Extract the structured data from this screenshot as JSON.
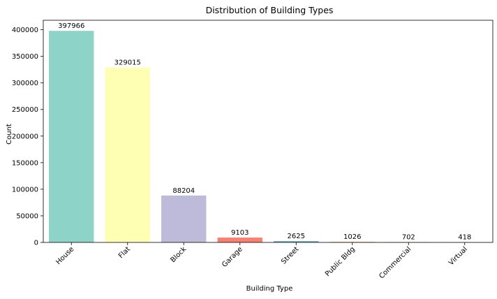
{
  "chart_data": {
    "type": "bar",
    "title": "Distribution of Building Types",
    "xlabel": "Building Type",
    "ylabel": "Count",
    "categories": [
      "House",
      "Flat",
      "Block",
      "Garage",
      "Street",
      "Public Bldg",
      "Commercial",
      "Virtual"
    ],
    "values": [
      397966,
      329015,
      88204,
      9103,
      2625,
      1026,
      702,
      418
    ],
    "data_labels": [
      "397966",
      "329015",
      "88204",
      "9103",
      "2625",
      "1026",
      "702",
      "418"
    ],
    "colors": [
      "#8dd3c7",
      "#ffffb3",
      "#bebada",
      "#fb8072",
      "#80b1d3",
      "#fdb462",
      "#b3de69",
      "#fccde5"
    ],
    "ylim": [
      0,
      417864
    ],
    "yticks": [
      0,
      50000,
      100000,
      150000,
      200000,
      250000,
      300000,
      350000,
      400000
    ],
    "ytick_labels": [
      "0",
      "50000",
      "100000",
      "150000",
      "200000",
      "250000",
      "300000",
      "350000",
      "400000"
    ],
    "grid": false,
    "legend": "none"
  }
}
